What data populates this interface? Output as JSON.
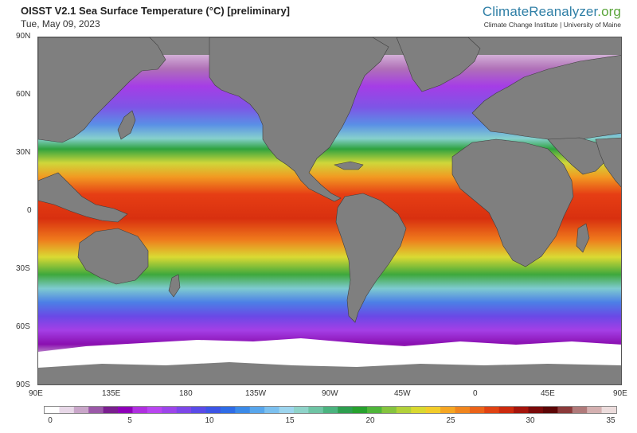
{
  "header": {
    "title": "OISST V2.1 Sea Surface Temperature (°C) [preliminary]",
    "date": "Tue, May 09, 2023"
  },
  "brand": {
    "logo_part1": "ClimateReanalyzer",
    "logo_part2": ".org",
    "subtitle": "Climate Change Institute | University of Maine"
  },
  "map": {
    "projection": "equirectangular",
    "lon_range": [
      90,
      450
    ],
    "lat_range": [
      -90,
      90
    ],
    "land_color": "#7f7f7f",
    "ice_color": "#ffffff",
    "lat_labels": [
      "90N",
      "60N",
      "30N",
      "0",
      "30S",
      "60S",
      "90S"
    ],
    "lon_labels": [
      "90E",
      "135E",
      "180",
      "135W",
      "90W",
      "45W",
      "0",
      "45E",
      "90E"
    ]
  },
  "colorbar": {
    "unit": "°C",
    "min": 0,
    "max": 35,
    "tick_labels": [
      "0",
      "5",
      "10",
      "15",
      "20",
      "25",
      "30",
      "35"
    ],
    "colors": [
      "#ffffff",
      "#e8d8e8",
      "#c9a6c9",
      "#9b59a8",
      "#7a1f8f",
      "#8e00b8",
      "#b030e0",
      "#b946f0",
      "#9d45ea",
      "#7d47e8",
      "#5a4be8",
      "#3d55e6",
      "#2f6ce6",
      "#3b8ae8",
      "#58a6ec",
      "#7cc0ef",
      "#9dd5ee",
      "#8fd3c9",
      "#6fc4a4",
      "#4bb37f",
      "#2e9e4f",
      "#27a12e",
      "#4fb53a",
      "#85c43f",
      "#b2d13a",
      "#d9d930",
      "#f2cc2a",
      "#f5a623",
      "#f0851e",
      "#eb6319",
      "#e04313",
      "#cc2a0e",
      "#a5150c",
      "#7a0a0a",
      "#5c0606",
      "#8b3a3a",
      "#b07a7a",
      "#d4b0b0",
      "#ecdcdc"
    ]
  }
}
